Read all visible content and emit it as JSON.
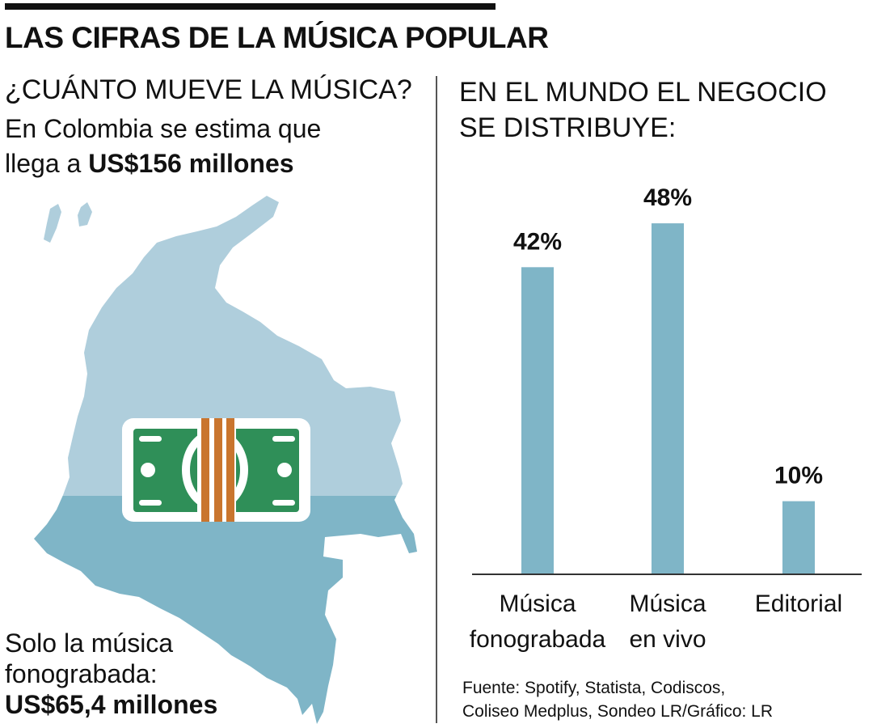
{
  "header": {
    "title": "LAS CIFRAS DE LA MÚSICA POPULAR"
  },
  "left": {
    "heading": "¿CUÁNTO MUEVE LA MÚSICA?",
    "intro_line1": "En Colombia se estima que",
    "intro_line2_prefix": "llega a ",
    "intro_amount": "US$156 millones",
    "note_line1": "Solo la música",
    "note_line2": "fonograbada:",
    "note_amount": "US$65,4 millones"
  },
  "right": {
    "heading_line1": "EN EL MUNDO EL NEGOCIO",
    "heading_line2": "SE DISTRIBUYE:"
  },
  "source": {
    "line1": "Fuente: Spotify, Statista, Codiscos,",
    "line2": "Coliseo Medplus, Sondeo LR/Gráfico: LR"
  },
  "colors": {
    "bar": "#7fb5c7",
    "map_top": "#afcedc",
    "map_bottom": "#7fb5c7",
    "bill_green": "#2f8f58",
    "bill_band": "#c9752e"
  },
  "icons": {
    "map": "colombia-map-icon",
    "money": "money-bill-icon"
  },
  "chart_data": {
    "type": "bar",
    "categories": [
      [
        "Música",
        "fonograbada"
      ],
      [
        "Música",
        "en vivo"
      ],
      [
        "Editorial"
      ]
    ],
    "values": [
      42,
      48,
      10
    ],
    "value_labels": [
      "42%",
      "48%",
      "10%"
    ],
    "ylim": [
      0,
      50
    ],
    "grid": false,
    "legend": "none"
  }
}
